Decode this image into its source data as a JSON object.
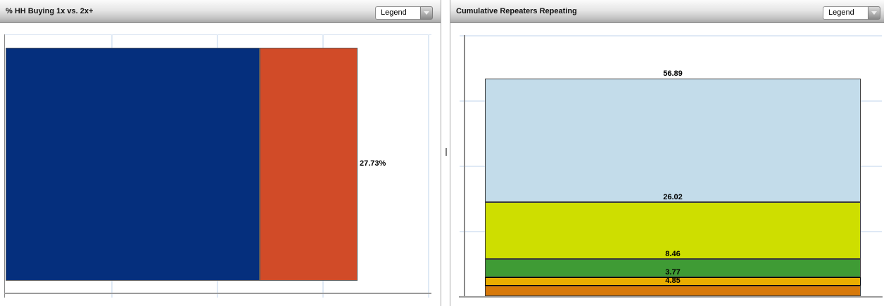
{
  "panels": [
    {
      "id": "hh-buying",
      "title": "% HH Buying 1x vs. 2x+",
      "legend_label": "Legend"
    },
    {
      "id": "cumulative-repeaters",
      "title": "Cumulative Repeaters Repeating",
      "legend_label": "Legend"
    }
  ],
  "chart_data": [
    {
      "type": "bar",
      "orientation": "horizontal",
      "stacked": true,
      "title": "% HH Buying 1x vs. 2x+",
      "segments": [
        {
          "label": "72.27%",
          "value": 72.27,
          "color": "#052f7d"
        },
        {
          "label": "27.73%",
          "value": 27.73,
          "color": "#d14b28"
        }
      ],
      "axis": {
        "min": 0,
        "max": 120,
        "gridline_step": 30,
        "tick_labels_visible": false,
        "grid": "on"
      },
      "legend": "collapsed-dropdown",
      "data_labels": "end-of-segment"
    },
    {
      "type": "bar",
      "orientation": "vertical",
      "stacked": true,
      "title": "Cumulative Repeaters Repeating",
      "segments_top_to_bottom": [
        {
          "label": "56.89",
          "value": 56.89,
          "color": "#c3dcea",
          "border": "#3a3a3a"
        },
        {
          "label": "26.02",
          "value": 26.02,
          "color": "#cede00",
          "border": "#3a3a3a"
        },
        {
          "label": "8.46",
          "value": 8.46,
          "color": "#3f9b35",
          "border": "#3a3a3a"
        },
        {
          "label": "3.77",
          "value": 3.77,
          "color": "#eaad00",
          "border": "#000000"
        },
        {
          "label": "4.85",
          "value": 4.85,
          "color": "#d7790a",
          "border": "#3a3a3a"
        }
      ],
      "axis": {
        "min": 0,
        "max": 120,
        "gridline_step": 30,
        "tick_labels_visible": false,
        "grid": "on"
      },
      "legend": "collapsed-dropdown",
      "data_labels": "above-segment-top"
    }
  ],
  "colors": {
    "gridline": "#dfe9f5",
    "axis_line": "#9b9b9b",
    "y_axis_line": "#8a8a8a",
    "plot_edge": "#d9e4f2",
    "segment_border": "#5a5a5a",
    "label_text": "#000000"
  }
}
